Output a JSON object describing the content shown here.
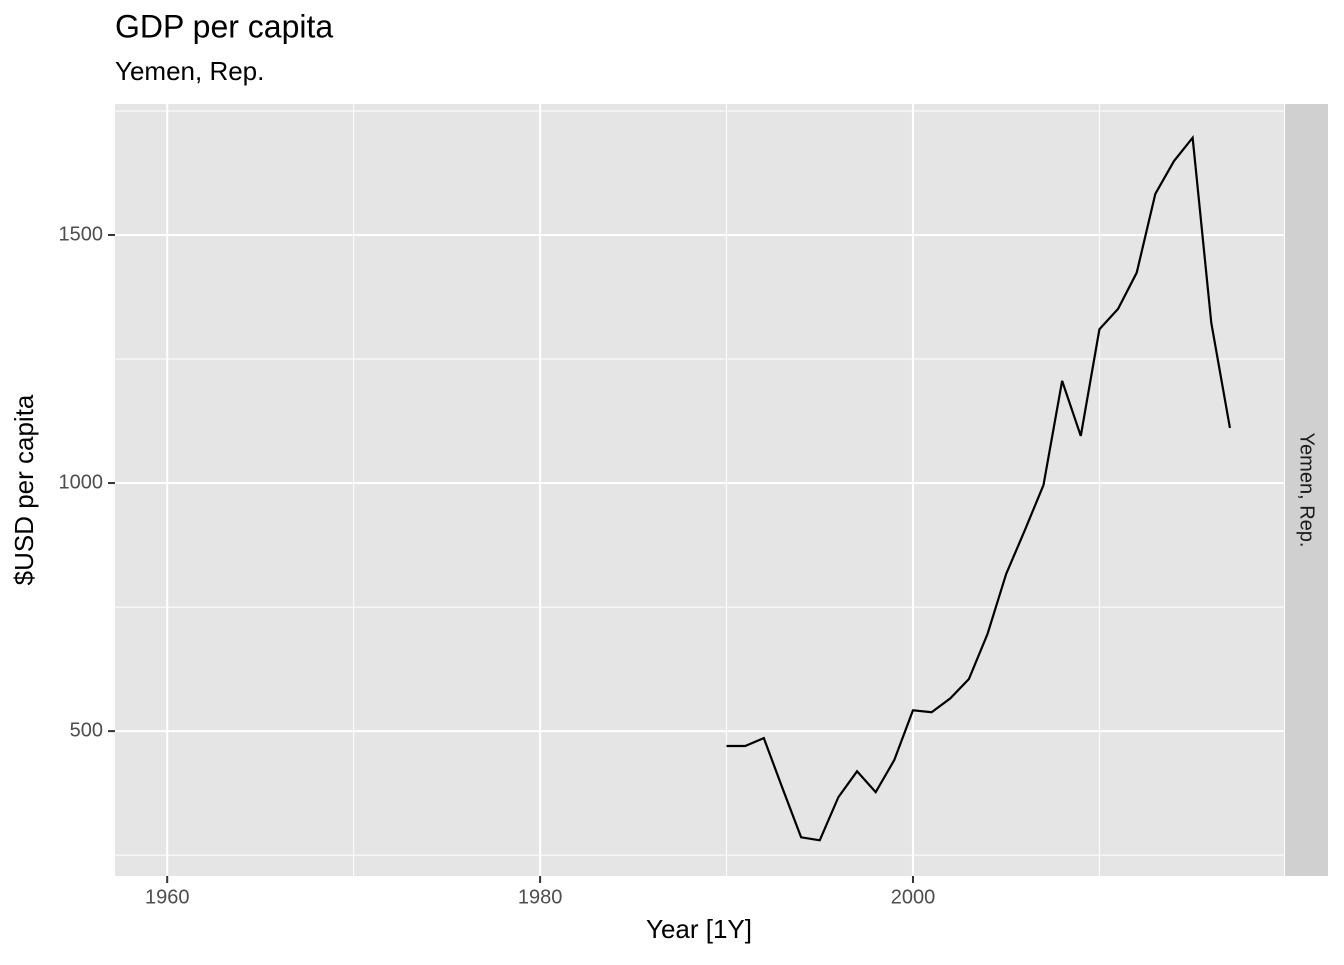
{
  "chart_data": {
    "type": "line",
    "title": "GDP per capita",
    "subtitle": "Yemen, Rep.",
    "facet": "Yemen, Rep.",
    "x_label": "Year [1Y]",
    "y_label": "$USD per capita",
    "x": [
      1990,
      1991,
      1992,
      1993,
      1994,
      1995,
      1996,
      1997,
      1998,
      1999,
      2000,
      2001,
      2002,
      2003,
      2004,
      2005,
      2006,
      2007,
      2008,
      2009,
      2010,
      2011,
      2012,
      2013,
      2014,
      2015,
      2016,
      2017
    ],
    "values": [
      470,
      470,
      486,
      385,
      286,
      280,
      367,
      419,
      377,
      442,
      542,
      538,
      566,
      605,
      696,
      817,
      905,
      996,
      1206,
      1095,
      1310,
      1351,
      1424,
      1583,
      1649,
      1696,
      1323,
      1111
    ],
    "color": "#000000",
    "xlim": [
      1957.2,
      2019.9
    ],
    "xticks": [
      1960,
      1980,
      2000
    ],
    "ylim": [
      208,
      1764
    ],
    "yticks": [
      500,
      1000,
      1500
    ],
    "grid": true,
    "grid_minor": true
  }
}
